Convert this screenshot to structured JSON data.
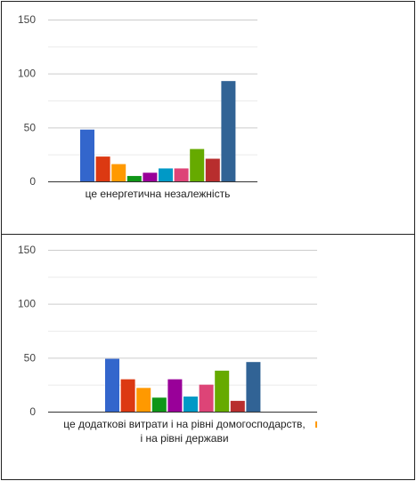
{
  "chart_data": [
    {
      "type": "bar",
      "categories": [
        "це енергетична незалежність"
      ],
      "category_label_lines": [
        "це енергетична незалежність"
      ],
      "series": [
        {
          "values": [
            48
          ],
          "color": "#3366cc"
        },
        {
          "values": [
            23
          ],
          "color": "#dc3912"
        },
        {
          "values": [
            16
          ],
          "color": "#ff9900"
        },
        {
          "values": [
            5
          ],
          "color": "#109618"
        },
        {
          "values": [
            8
          ],
          "color": "#990099"
        },
        {
          "values": [
            12
          ],
          "color": "#0099c6"
        },
        {
          "values": [
            12
          ],
          "color": "#dd4477"
        },
        {
          "values": [
            30
          ],
          "color": "#66aa00"
        },
        {
          "values": [
            21
          ],
          "color": "#b82e2e"
        },
        {
          "values": [
            93
          ],
          "color": "#316395"
        }
      ],
      "y_ticks": [
        "0",
        "50",
        "100",
        "150"
      ],
      "ylim": [
        0,
        150
      ],
      "grid": true,
      "title": "",
      "xlabel": "",
      "ylabel": ""
    },
    {
      "type": "bar",
      "categories": [
        "це додаткові витрати і на рівні домогосподарств, і на рівні держави"
      ],
      "category_label_lines": [
        "це додаткові витрати і на рівні домогосподарств,",
        "і на рівні держави"
      ],
      "series": [
        {
          "values": [
            49
          ],
          "color": "#3366cc"
        },
        {
          "values": [
            30
          ],
          "color": "#dc3912"
        },
        {
          "values": [
            22
          ],
          "color": "#ff9900"
        },
        {
          "values": [
            13
          ],
          "color": "#109618"
        },
        {
          "values": [
            30
          ],
          "color": "#990099"
        },
        {
          "values": [
            14
          ],
          "color": "#0099c6"
        },
        {
          "values": [
            25
          ],
          "color": "#dd4477"
        },
        {
          "values": [
            38
          ],
          "color": "#66aa00"
        },
        {
          "values": [
            10
          ],
          "color": "#b82e2e"
        },
        {
          "values": [
            46
          ],
          "color": "#316395"
        }
      ],
      "y_ticks": [
        "0",
        "50",
        "100",
        "150"
      ],
      "ylim": [
        0,
        150
      ],
      "grid": true,
      "title": "",
      "xlabel": "",
      "ylabel": ""
    }
  ]
}
